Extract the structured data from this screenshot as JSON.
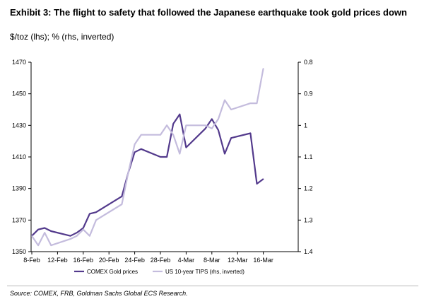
{
  "header": {
    "title": "Exhibit 3: The flight to safety that followed the Japanese earthquake took gold prices down",
    "subtitle": "$/toz (lhs); % (rhs, inverted)"
  },
  "footer": {
    "source": "Source: COMEX, FRB, Goldman Sachs Global ECS Research."
  },
  "chart_data": {
    "type": "line",
    "x_tick_labels": [
      "8-Feb",
      "12-Feb",
      "16-Feb",
      "20-Feb",
      "24-Feb",
      "28-Feb",
      "4-Mar",
      "8-Mar",
      "12-Mar",
      "16-Mar"
    ],
    "left_axis": {
      "ylim": [
        1350,
        1470
      ],
      "ticks": [
        1350,
        1370,
        1390,
        1410,
        1430,
        1450,
        1470
      ]
    },
    "right_axis": {
      "ylim": [
        0.8,
        1.4
      ],
      "inverted": true,
      "ticks": [
        "0.8",
        "0.9",
        "1",
        "1.1",
        "1.2",
        "1.3",
        "1.4"
      ]
    },
    "series": [
      {
        "name": "COMEX Gold prices",
        "axis": "left",
        "color": "#533a8c",
        "x": [
          "8-Feb",
          "9-Feb",
          "10-Feb",
          "11-Feb",
          "14-Feb",
          "15-Feb",
          "16-Feb",
          "17-Feb",
          "18-Feb",
          "22-Feb",
          "23-Feb",
          "24-Feb",
          "25-Feb",
          "28-Feb",
          "1-Mar",
          "2-Mar",
          "3-Mar",
          "4-Mar",
          "7-Mar",
          "8-Mar",
          "9-Mar",
          "10-Mar",
          "11-Mar",
          "14-Mar",
          "15-Mar",
          "16-Mar"
        ],
        "values": [
          1360,
          1364,
          1365,
          1363,
          1360,
          1362,
          1365,
          1374,
          1375,
          1385,
          1400,
          1413,
          1415,
          1410,
          1410,
          1431,
          1437,
          1416,
          1428,
          1434,
          1427,
          1412,
          1422,
          1425,
          1393,
          1396
        ]
      },
      {
        "name": "US 10-year TIPS (rhs, inverted)",
        "axis": "right",
        "color": "#c4bcdd",
        "x": [
          "8-Feb",
          "9-Feb",
          "10-Feb",
          "11-Feb",
          "14-Feb",
          "15-Feb",
          "16-Feb",
          "17-Feb",
          "18-Feb",
          "22-Feb",
          "23-Feb",
          "24-Feb",
          "25-Feb",
          "28-Feb",
          "1-Mar",
          "2-Mar",
          "3-Mar",
          "4-Mar",
          "7-Mar",
          "8-Mar",
          "9-Mar",
          "10-Mar",
          "11-Mar",
          "14-Mar",
          "15-Mar",
          "16-Mar"
        ],
        "values": [
          1.35,
          1.38,
          1.34,
          1.38,
          1.36,
          1.35,
          1.33,
          1.35,
          1.3,
          1.25,
          1.15,
          1.06,
          1.03,
          1.03,
          1.0,
          1.03,
          1.09,
          1.0,
          1.0,
          1.01,
          0.98,
          0.92,
          0.95,
          0.93,
          0.93,
          0.82
        ]
      }
    ],
    "legend": {
      "placement": "bottom"
    }
  }
}
